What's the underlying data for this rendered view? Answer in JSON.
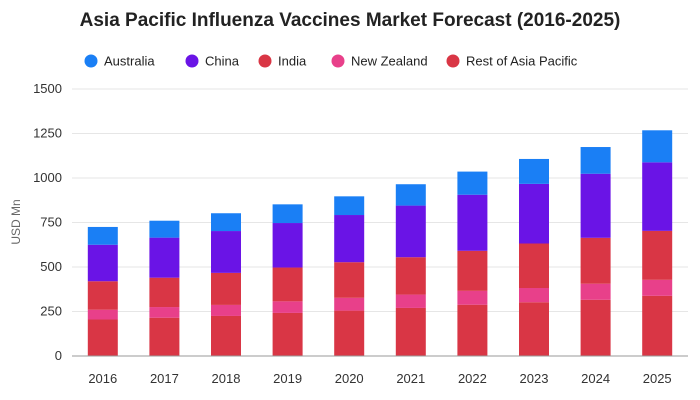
{
  "chart_data": {
    "type": "bar",
    "stacked": true,
    "title": "Asia Pacific Influenza Vaccines Market Forecast (2016-2025)",
    "ylabel": "USD Mn",
    "xlabel": "",
    "ylim": [
      0,
      1500
    ],
    "yticks": [
      0,
      250,
      500,
      750,
      1000,
      1250,
      1500
    ],
    "grid": true,
    "legend_position": "top",
    "categories": [
      "2016",
      "2017",
      "2018",
      "2019",
      "2020",
      "2021",
      "2022",
      "2023",
      "2024",
      "2025"
    ],
    "series": [
      {
        "name": "Rest of Asia Pacific",
        "color": "#d93645",
        "values": [
          205,
          215,
          225,
          242,
          255,
          270,
          288,
          302,
          316,
          338
        ]
      },
      {
        "name": "New Zealand",
        "color": "#e8408a",
        "values": [
          55,
          60,
          62,
          65,
          72,
          75,
          78,
          80,
          90,
          90
        ]
      },
      {
        "name": "India",
        "color": "#d93645",
        "values": [
          160,
          165,
          180,
          190,
          200,
          210,
          225,
          250,
          258,
          275
        ]
      },
      {
        "name": "China",
        "color": "#6a14e6",
        "values": [
          205,
          225,
          235,
          250,
          265,
          290,
          315,
          335,
          360,
          385
        ]
      },
      {
        "name": "Australia",
        "color": "#1a7ff5",
        "values": [
          100,
          95,
          100,
          105,
          105,
          120,
          130,
          140,
          150,
          180
        ]
      }
    ],
    "legend_order": [
      "Australia",
      "China",
      "India",
      "New Zealand",
      "Rest of Asia Pacific"
    ]
  }
}
